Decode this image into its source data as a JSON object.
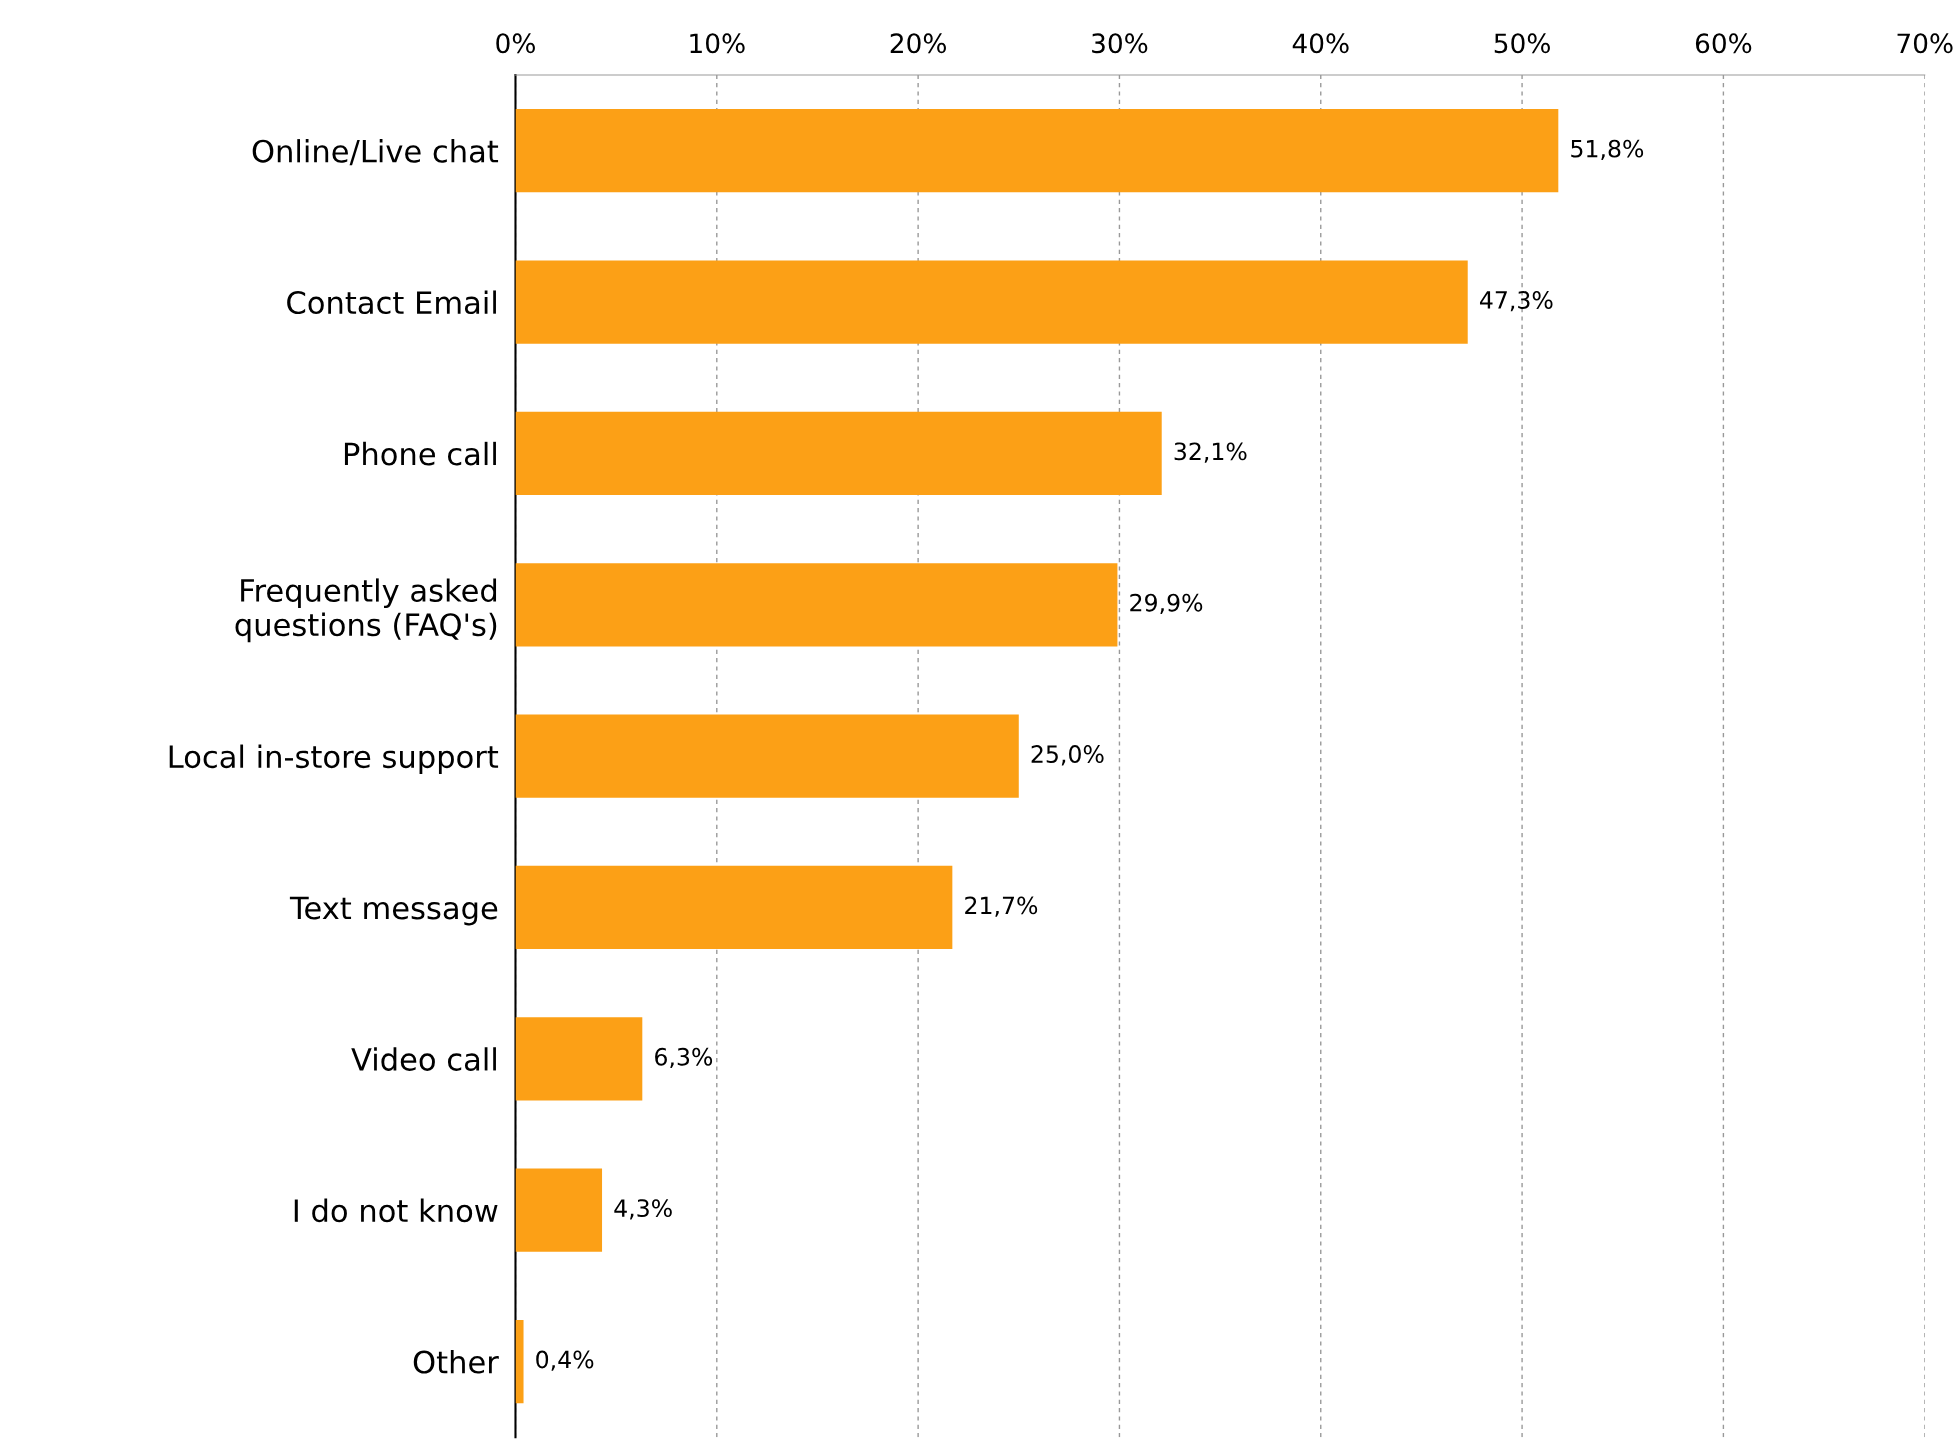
{
  "chart_data": {
    "type": "bar",
    "orientation": "horizontal",
    "categories": [
      "Online/Live chat",
      "Contact Email",
      "Phone call",
      "Frequently asked\nquestions (FAQ's)",
      "Local in-store support",
      "Text message",
      "Video call",
      "I do not know",
      "Other"
    ],
    "values": [
      51.8,
      47.3,
      32.1,
      29.9,
      25.0,
      21.7,
      6.3,
      4.3,
      0.4
    ],
    "value_labels": [
      "51,8%",
      "47,3%",
      "32,1%",
      "29,9%",
      "25,0%",
      "21,7%",
      "6,3%",
      "4,3%",
      "0,4%"
    ],
    "color": "#fca016",
    "xlim": [
      0,
      70
    ],
    "xticks": [
      {
        "value": 0,
        "label": "0%"
      },
      {
        "value": 10,
        "label": "10%"
      },
      {
        "value": 20,
        "label": "20%"
      },
      {
        "value": 30,
        "label": "30%"
      },
      {
        "value": 40,
        "label": "40%"
      },
      {
        "value": 50,
        "label": "50%"
      },
      {
        "value": 60,
        "label": "60%"
      },
      {
        "value": 70,
        "label": "70%"
      }
    ],
    "grid": "x"
  }
}
